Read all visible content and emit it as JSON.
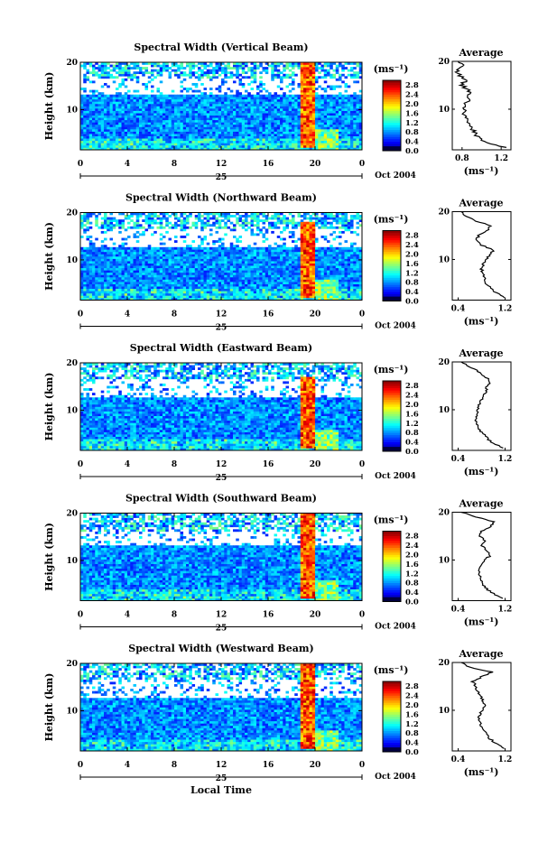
{
  "figure": {
    "bottom_xlabel": "Local Time",
    "day_label": "25",
    "date_label": "Oct 2004"
  },
  "chart_data": [
    {
      "type": "heatmap",
      "title": "Spectral Width (Vertical Beam)",
      "ylabel": "Height (km)",
      "xlabel": "Local Time",
      "x_ticks": [
        "0",
        "4",
        "8",
        "12",
        "16",
        "20",
        "0"
      ],
      "y_ticks": [
        "10",
        "20"
      ],
      "xlim": [
        0,
        24
      ],
      "ylim": [
        1.5,
        20
      ],
      "colorbar": {
        "label": "(ms⁻¹)",
        "ticks": [
          "0.0",
          "0.4",
          "0.8",
          "1.2",
          "1.6",
          "2.0",
          "2.4",
          "2.8"
        ],
        "range": [
          0.0,
          3.0
        ]
      },
      "empty_band_km": [
        13,
        16.5
      ],
      "enhancement": {
        "local_time_hours": [
          19,
          20
        ],
        "height_km": [
          2,
          20
        ],
        "max_value": 2.8
      },
      "average_profile": {
        "title": "Average",
        "xlabel": "(ms⁻¹)",
        "x_ticks": [
          "0.8",
          "1.2"
        ],
        "y_ticks": [
          "10",
          "20"
        ],
        "xlim": [
          0.7,
          1.3
        ],
        "ylim": [
          1.5,
          20
        ],
        "height_km": [
          2,
          3,
          4,
          5,
          6,
          7,
          8,
          9,
          10,
          11,
          12,
          13,
          14,
          15,
          16,
          17,
          18,
          19,
          20
        ],
        "width": [
          1.25,
          1.05,
          0.97,
          0.93,
          0.9,
          0.87,
          0.84,
          0.82,
          0.83,
          0.84,
          0.86,
          0.88,
          0.86,
          0.8,
          0.83,
          0.78,
          0.75,
          0.82,
          0.76
        ]
      }
    },
    {
      "type": "heatmap",
      "title": "Spectral Width (Northward Beam)",
      "ylabel": "Height (km)",
      "xlabel": "Local Time",
      "x_ticks": [
        "0",
        "4",
        "8",
        "12",
        "16",
        "20",
        "0"
      ],
      "y_ticks": [
        "10",
        "20"
      ],
      "xlim": [
        0,
        24
      ],
      "ylim": [
        1.5,
        20
      ],
      "colorbar": {
        "label": "(ms⁻¹)",
        "ticks": [
          "0.0",
          "0.4",
          "0.8",
          "1.2",
          "1.6",
          "2.0",
          "2.4",
          "2.8"
        ],
        "range": [
          0.0,
          3.0
        ]
      },
      "empty_band_km": [
        12.5,
        16.5
      ],
      "enhancement": {
        "local_time_hours": [
          19,
          20
        ],
        "height_km": [
          2,
          18
        ],
        "max_value": 2.8
      },
      "average_profile": {
        "title": "Average",
        "xlabel": "(ms⁻¹)",
        "x_ticks": [
          "0.4",
          "1.2"
        ],
        "y_ticks": [
          "10",
          "20"
        ],
        "xlim": [
          0.3,
          1.3
        ],
        "ylim": [
          1.5,
          20
        ],
        "height_km": [
          2,
          3,
          4,
          5,
          6,
          7,
          8,
          9,
          10,
          11,
          12,
          13,
          14,
          15,
          16,
          17,
          18,
          19,
          20
        ],
        "width": [
          1.2,
          1.05,
          0.95,
          0.88,
          0.85,
          0.83,
          0.8,
          0.82,
          0.88,
          0.95,
          1.0,
          0.8,
          0.7,
          0.75,
          0.9,
          0.95,
          0.72,
          0.55,
          0.45
        ]
      }
    },
    {
      "type": "heatmap",
      "title": "Spectral Width (Eastward Beam)",
      "ylabel": "Height (km)",
      "xlabel": "Local Time",
      "x_ticks": [
        "0",
        "4",
        "8",
        "12",
        "16",
        "20",
        "0"
      ],
      "y_ticks": [
        "10",
        "20"
      ],
      "xlim": [
        0,
        24
      ],
      "ylim": [
        1.5,
        20
      ],
      "colorbar": {
        "label": "(ms⁻¹)",
        "ticks": [
          "0.0",
          "0.4",
          "0.8",
          "1.2",
          "1.6",
          "2.0",
          "2.4",
          "2.8"
        ],
        "range": [
          0.0,
          3.0
        ]
      },
      "empty_band_km": [
        12.5,
        16.5
      ],
      "enhancement": {
        "local_time_hours": [
          19,
          20
        ],
        "height_km": [
          2,
          17
        ],
        "max_value": 2.8
      },
      "average_profile": {
        "title": "Average",
        "xlabel": "(ms⁻¹)",
        "x_ticks": [
          "0.4",
          "1.2"
        ],
        "y_ticks": [
          "10",
          "20"
        ],
        "xlim": [
          0.3,
          1.3
        ],
        "ylim": [
          1.5,
          20
        ],
        "height_km": [
          2,
          3,
          4,
          5,
          6,
          7,
          8,
          9,
          10,
          11,
          12,
          13,
          14,
          15,
          16,
          17,
          18,
          19,
          20
        ],
        "width": [
          1.15,
          1.0,
          0.9,
          0.82,
          0.75,
          0.72,
          0.7,
          0.72,
          0.74,
          0.75,
          0.8,
          0.85,
          0.88,
          0.9,
          0.95,
          0.85,
          0.75,
          0.6,
          0.45
        ]
      }
    },
    {
      "type": "heatmap",
      "title": "Spectral Width (Southward Beam)",
      "ylabel": "Height (km)",
      "xlabel": "Local Time",
      "x_ticks": [
        "0",
        "4",
        "8",
        "12",
        "16",
        "20",
        "0"
      ],
      "y_ticks": [
        "10",
        "20"
      ],
      "xlim": [
        0,
        24
      ],
      "ylim": [
        1.5,
        20
      ],
      "colorbar": {
        "label": "(ms⁻¹)",
        "ticks": [
          "0.0",
          "0.4",
          "0.8",
          "1.2",
          "1.6",
          "2.0",
          "2.4",
          "2.8"
        ],
        "range": [
          0.0,
          3.0
        ]
      },
      "empty_band_km": [
        13,
        16
      ],
      "enhancement": {
        "local_time_hours": [
          19,
          20
        ],
        "height_km": [
          2,
          20
        ],
        "max_value": 2.8
      },
      "average_profile": {
        "title": "Average",
        "xlabel": "(ms⁻¹)",
        "x_ticks": [
          "0.4",
          "1.2"
        ],
        "y_ticks": [
          "10",
          "20"
        ],
        "xlim": [
          0.3,
          1.3
        ],
        "ylim": [
          1.5,
          20
        ],
        "height_km": [
          2,
          3,
          4,
          5,
          6,
          7,
          8,
          9,
          10,
          11,
          12,
          13,
          14,
          15,
          16,
          17,
          18,
          19,
          20
        ],
        "width": [
          1.15,
          1.0,
          0.88,
          0.82,
          0.78,
          0.76,
          0.75,
          0.78,
          0.85,
          0.95,
          0.9,
          0.8,
          0.88,
          0.75,
          0.8,
          0.95,
          1.0,
          0.7,
          0.45
        ]
      }
    },
    {
      "type": "heatmap",
      "title": "Spectral Width (Westward Beam)",
      "ylabel": "Height (km)",
      "xlabel": "Local Time",
      "x_ticks": [
        "0",
        "4",
        "8",
        "12",
        "16",
        "20",
        "0"
      ],
      "y_ticks": [
        "10",
        "20"
      ],
      "xlim": [
        0,
        24
      ],
      "ylim": [
        1.5,
        20
      ],
      "colorbar": {
        "label": "(ms⁻¹)",
        "ticks": [
          "0.0",
          "0.4",
          "0.8",
          "1.2",
          "1.6",
          "2.0",
          "2.4",
          "2.8"
        ],
        "range": [
          0.0,
          3.0
        ]
      },
      "empty_band_km": [
        12.5,
        16.5
      ],
      "enhancement": {
        "local_time_hours": [
          19,
          20
        ],
        "height_km": [
          2,
          20
        ],
        "max_value": 2.8
      },
      "average_profile": {
        "title": "Average",
        "xlabel": "(ms⁻¹)",
        "x_ticks": [
          "0.4",
          "1.2"
        ],
        "y_ticks": [
          "10",
          "20"
        ],
        "xlim": [
          0.3,
          1.3
        ],
        "ylim": [
          1.5,
          20
        ],
        "height_km": [
          2,
          3,
          4,
          5,
          6,
          7,
          8,
          9,
          10,
          11,
          12,
          13,
          14,
          15,
          16,
          17,
          18,
          19,
          20
        ],
        "width": [
          1.2,
          1.05,
          0.95,
          0.88,
          0.82,
          0.78,
          0.75,
          0.76,
          0.8,
          0.86,
          0.82,
          0.78,
          0.72,
          0.7,
          0.65,
          0.8,
          0.98,
          0.6,
          0.45
        ]
      }
    }
  ]
}
